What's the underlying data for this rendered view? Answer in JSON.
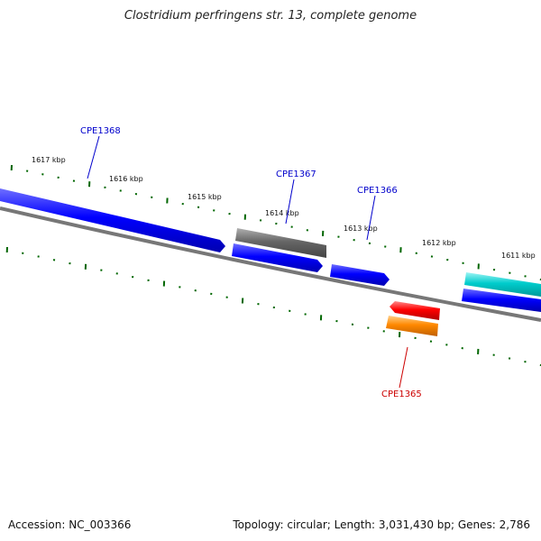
{
  "title": "Clostridium perfringens str. 13, complete genome",
  "footer": {
    "accession": "Accession: NC_003366",
    "summary": "Topology: circular; Length: 3,031,430 bp; Genes: 2,786"
  },
  "ruler_labels": [
    "1617 kbp",
    "1616 kbp",
    "1615 kbp",
    "1614 kbp",
    "1613 kbp",
    "1612 kbp",
    "1611 kbp"
  ],
  "gene_labels": [
    {
      "id": "CPE1368",
      "color": "#0000cc"
    },
    {
      "id": "CPE1367",
      "color": "#0000cc"
    },
    {
      "id": "CPE1366",
      "color": "#0000cc"
    },
    {
      "id": "CPE1365",
      "color": "#cc0000"
    }
  ],
  "colors": {
    "forward_gene": "#0000ff",
    "gray_gene": "#666666",
    "cyan_gene": "#00cccc",
    "red_gene": "#ff0000",
    "orange_gene": "#ff8800",
    "ticks": "#006600",
    "backbone": "#777777"
  }
}
